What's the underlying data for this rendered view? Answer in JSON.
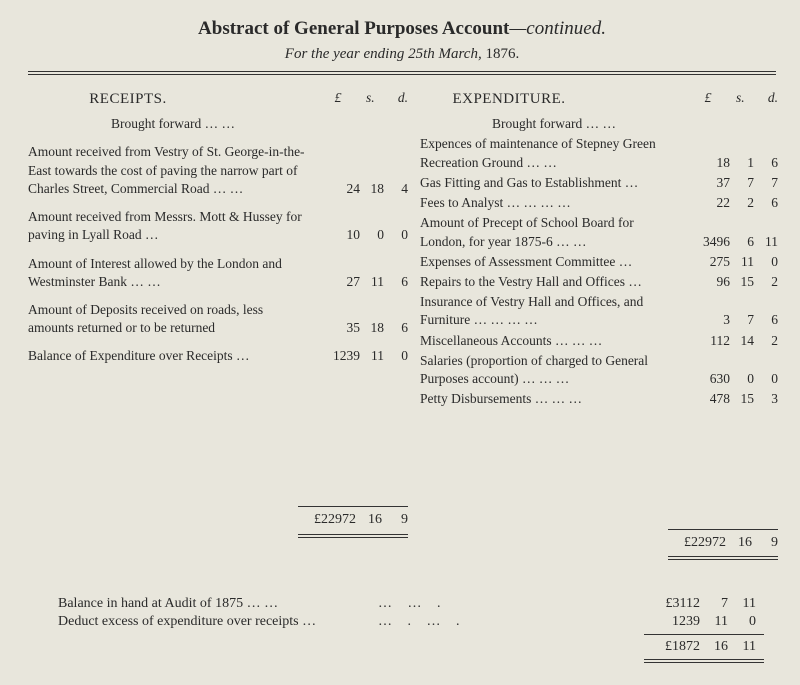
{
  "title_main": "Abstract of General Purposes Account",
  "title_suffix": "—continued.",
  "subtitle_prefix": "For the year ending",
  "subtitle_date": "25th March,",
  "subtitle_year": "1876.",
  "receipts_hdr": "RECEIPTS.",
  "expenditure_hdr": "EXPENDITURE.",
  "lsd": {
    "l": "£",
    "s": "s.",
    "d": "d."
  },
  "brought_fwd": "Brought forward    …    …",
  "receipts": [
    {
      "desc": "Amount received from Vestry of St. George-in-the-East towards the cost of paving the narrow part of Charles Street, Commercial Road    …    …",
      "l": "24",
      "s": "18",
      "d": "4"
    },
    {
      "desc": "Amount received from Messrs. Mott & Hussey for paving in Lyall Road    …",
      "l": "10",
      "s": "0",
      "d": "0"
    },
    {
      "desc": "Amount of Interest allowed by the London and Westminster Bank    …    …",
      "l": "27",
      "s": "11",
      "d": "6"
    },
    {
      "desc": "Amount of Deposits received on roads, less amounts returned or to be returned",
      "l": "35",
      "s": "18",
      "d": "6"
    },
    {
      "desc": "Balance of Expenditure over Receipts …",
      "l": "1239",
      "s": "11",
      "d": "0"
    }
  ],
  "expenditure": [
    {
      "desc": "Expences of maintenance of Stepney Green Recreation Ground    …    …",
      "l": "18",
      "s": "1",
      "d": "6"
    },
    {
      "desc": "Gas Fitting and Gas to Establishment …",
      "l": "37",
      "s": "7",
      "d": "7"
    },
    {
      "desc": "Fees to Analyst    …    …    …    …",
      "l": "22",
      "s": "2",
      "d": "6"
    },
    {
      "desc": "Amount of Precept of School Board for London, for year 1875-6    …    …",
      "l": "3496",
      "s": "6",
      "d": "11"
    },
    {
      "desc": "Expenses of Assessment Committee …",
      "l": "275",
      "s": "11",
      "d": "0"
    },
    {
      "desc": "Repairs to the Vestry Hall and Offices  …",
      "l": "96",
      "s": "15",
      "d": "2"
    },
    {
      "desc": "Insurance of Vestry Hall and Offices, and Furniture    …    …    …    …",
      "l": "3",
      "s": "7",
      "d": "6"
    },
    {
      "desc": "Miscellaneous Accounts …    …    …",
      "l": "112",
      "s": "14",
      "d": "2"
    },
    {
      "desc": "Salaries (proportion of charged to General Purposes account)    …    …    …",
      "l": "630",
      "s": "0",
      "d": "0"
    },
    {
      "desc": "Petty Disbursements    …    …    …",
      "l": "478",
      "s": "15",
      "d": "3"
    }
  ],
  "total_l": {
    "l": "£22972",
    "s": "16",
    "d": "9"
  },
  "total_r": {
    "l": "£22972",
    "s": "16",
    "d": "9"
  },
  "balance": {
    "row1_desc": "Balance in hand at Audit of 1875    …    …",
    "row1": {
      "l": "£3112",
      "s": "7",
      "d": "11"
    },
    "row2_desc": "Deduct excess of expenditure over receipts …",
    "row2": {
      "l": "1239",
      "s": "11",
      "d": "0"
    },
    "final": {
      "l": "£1872",
      "s": "16",
      "d": "11"
    }
  }
}
